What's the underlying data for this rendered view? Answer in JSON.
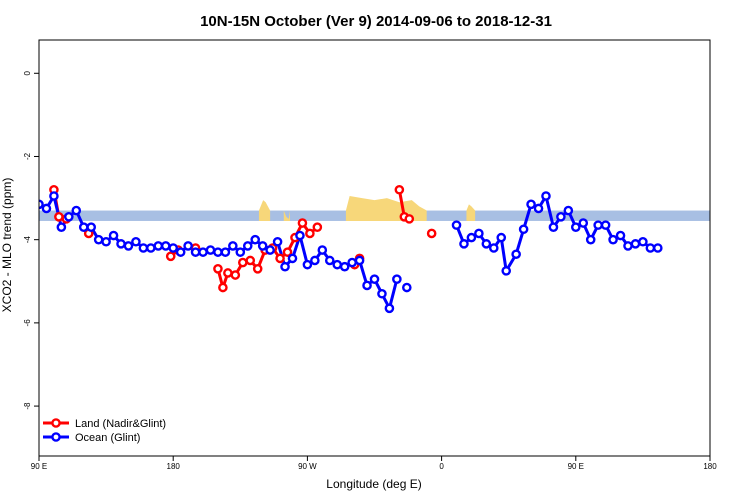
{
  "chart_data": {
    "type": "line",
    "title": "10N-15N October (Ver 9)   2014-09-06 to 2018-12-31",
    "xlabel": "Longitude (deg E)",
    "ylabel": "XCO2 - MLO trend (ppm)",
    "xlim": [
      -90,
      180
    ],
    "ylim": [
      -9.2,
      0.8
    ],
    "x_ticks": [
      -90,
      -45,
      0,
      45,
      90,
      135,
      180
    ],
    "x_tick_labels": [
      "90 E",
      "180",
      "90 W",
      "0",
      "90 E",
      "180"
    ],
    "x_tick_values": [
      -90,
      -36,
      18,
      72,
      126,
      180
    ],
    "y_ticks": [
      0,
      -2,
      -4,
      -6,
      -8
    ],
    "y_tick_labels": [
      "0",
      "-2",
      "-4",
      "-6",
      "-8"
    ],
    "band": {
      "y_low": -3.55,
      "y_high": -3.3,
      "color": "#a8bfe3"
    },
    "land_fill_color": "#f7d77a",
    "land_fill": [
      {
        "x": [
          -1.5,
          0.2,
          1.2,
          3.0
        ],
        "y_top": [
          -3.3,
          -3.05,
          -3.1,
          -3.3
        ]
      },
      {
        "x": [
          8.5,
          9.5,
          10.5,
          11.0
        ],
        "y_top": [
          -3.3,
          -3.45,
          -3.5,
          -3.3
        ]
      },
      {
        "x": [
          33.5,
          35,
          40,
          45,
          50,
          55,
          60,
          63,
          66
        ],
        "y_top": [
          -3.3,
          -2.95,
          -3.0,
          -3.05,
          -3.0,
          -3.1,
          -3.05,
          -3.2,
          -3.3
        ]
      },
      {
        "x": [
          82,
          83,
          84,
          85.5
        ],
        "y_top": [
          -3.3,
          -3.15,
          -3.2,
          -3.3
        ]
      }
    ],
    "series": [
      {
        "name": "Land (Nadir&Glint)",
        "color": "#ff0000",
        "segments": [
          [
            [
              -84,
              -2.8
            ],
            [
              -82,
              -3.45
            ],
            [
              -79,
              -3.5
            ]
          ],
          [
            [
              -70,
              -3.85
            ]
          ],
          [
            [
              -37,
              -4.4
            ],
            [
              -34,
              -4.25
            ]
          ],
          [
            [
              -27,
              -4.2
            ]
          ],
          [
            [
              -18,
              -4.7
            ],
            [
              -16,
              -5.15
            ],
            [
              -14,
              -4.8
            ],
            [
              -11,
              -4.85
            ],
            [
              -8,
              -4.55
            ],
            [
              -5,
              -4.5
            ],
            [
              -2,
              -4.7
            ],
            [
              1,
              -4.25
            ],
            [
              4,
              -4.2
            ],
            [
              7,
              -4.45
            ],
            [
              10,
              -4.3
            ],
            [
              13,
              -3.95
            ],
            [
              16,
              -3.6
            ],
            [
              19,
              -3.85
            ],
            [
              22,
              -3.7
            ]
          ],
          [
            [
              37,
              -4.6
            ],
            [
              39,
              -4.45
            ]
          ],
          [
            [
              55,
              -2.8
            ],
            [
              57,
              -3.45
            ],
            [
              59,
              -3.5
            ]
          ],
          [
            [
              68,
              -3.85
            ]
          ]
        ]
      },
      {
        "name": "Ocean (Glint)",
        "color": "#0000ff",
        "segments": [
          [
            [
              -90,
              -3.15
            ],
            [
              -87,
              -3.25
            ],
            [
              -84,
              -2.95
            ],
            [
              -81,
              -3.7
            ],
            [
              -78,
              -3.45
            ],
            [
              -75,
              -3.3
            ],
            [
              -72,
              -3.7
            ],
            [
              -69,
              -3.7
            ],
            [
              -66,
              -4.0
            ],
            [
              -63,
              -4.05
            ],
            [
              -60,
              -3.9
            ],
            [
              -57,
              -4.1
            ],
            [
              -54,
              -4.15
            ],
            [
              -51,
              -4.05
            ],
            [
              -48,
              -4.2
            ],
            [
              -45,
              -4.2
            ],
            [
              -42,
              -4.15
            ],
            [
              -39,
              -4.15
            ],
            [
              -36,
              -4.2
            ],
            [
              -33,
              -4.3
            ],
            [
              -30,
              -4.15
            ],
            [
              -27,
              -4.3
            ],
            [
              -24,
              -4.3
            ],
            [
              -21,
              -4.25
            ],
            [
              -18,
              -4.3
            ],
            [
              -15,
              -4.3
            ],
            [
              -12,
              -4.15
            ],
            [
              -9,
              -4.3
            ],
            [
              -6,
              -4.15
            ],
            [
              -3,
              -4.0
            ],
            [
              0,
              -4.15
            ],
            [
              3,
              -4.25
            ],
            [
              6,
              -4.05
            ],
            [
              9,
              -4.65
            ],
            [
              12,
              -4.45
            ],
            [
              15,
              -3.9
            ],
            [
              18,
              -4.6
            ],
            [
              21,
              -4.5
            ],
            [
              24,
              -4.25
            ],
            [
              27,
              -4.5
            ],
            [
              30,
              -4.6
            ],
            [
              33,
              -4.65
            ],
            [
              36,
              -4.55
            ],
            [
              39,
              -4.5
            ],
            [
              42,
              -5.1
            ],
            [
              45,
              -4.95
            ],
            [
              48,
              -5.3
            ],
            [
              51,
              -5.65
            ],
            [
              54,
              -4.95
            ]
          ],
          [
            [
              58,
              -5.15
            ]
          ],
          [
            [
              78,
              -3.65
            ],
            [
              81,
              -4.1
            ],
            [
              84,
              -3.95
            ],
            [
              87,
              -3.85
            ],
            [
              90,
              -4.1
            ],
            [
              93,
              -4.2
            ],
            [
              96,
              -3.95
            ],
            [
              98,
              -4.75
            ],
            [
              102,
              -4.35
            ],
            [
              105,
              -3.75
            ],
            [
              108,
              -3.15
            ],
            [
              111,
              -3.25
            ],
            [
              114,
              -2.95
            ],
            [
              117,
              -3.7
            ],
            [
              120,
              -3.45
            ],
            [
              123,
              -3.3
            ],
            [
              126,
              -3.7
            ],
            [
              129,
              -3.6
            ],
            [
              132,
              -4.0
            ],
            [
              135,
              -3.65
            ],
            [
              138,
              -3.65
            ],
            [
              141,
              -4.0
            ],
            [
              144,
              -3.9
            ],
            [
              147,
              -4.15
            ],
            [
              150,
              -4.1
            ],
            [
              153,
              -4.05
            ],
            [
              156,
              -4.2
            ],
            [
              159,
              -4.2
            ]
          ]
        ]
      }
    ],
    "legend_position": "bottom-left",
    "grid": false
  }
}
